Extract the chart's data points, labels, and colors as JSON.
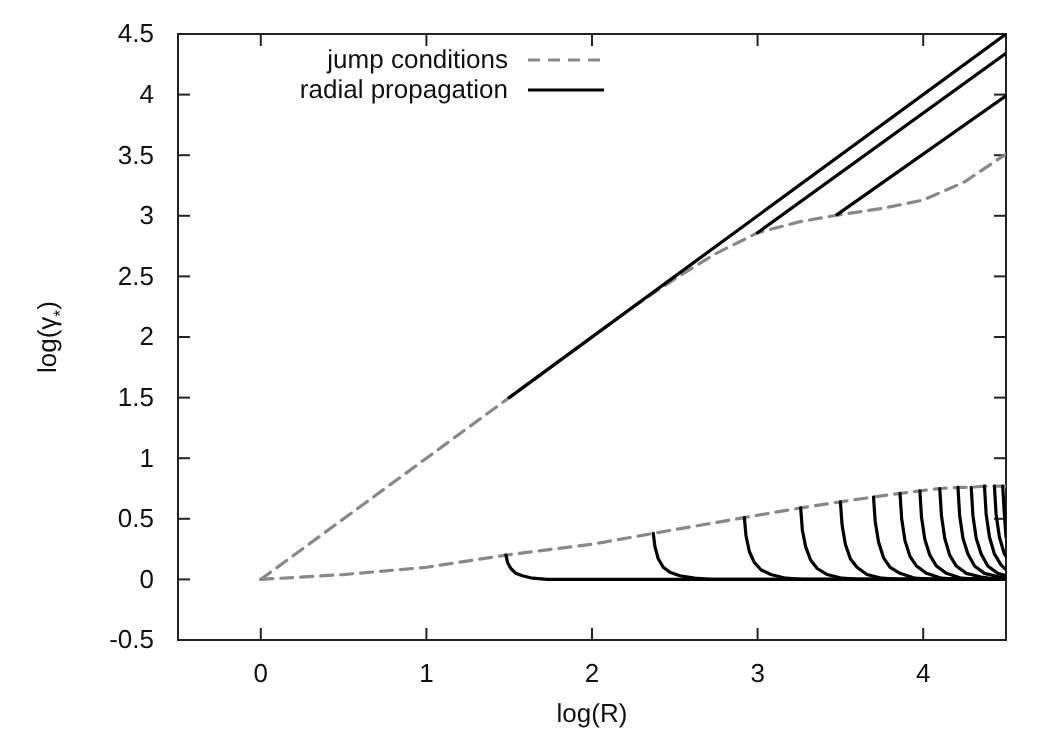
{
  "chart_data": {
    "type": "line",
    "xlabel": "log(R)",
    "ylabel": "log(γ$_{*}$)",
    "xlim": [
      -0.5,
      4.5
    ],
    "xticks": [
      0,
      1,
      2,
      3,
      4
    ],
    "ylim": [
      -0.5,
      4.5
    ],
    "yticks": [
      -0.5,
      0,
      0.5,
      1,
      1.5,
      2,
      2.5,
      3,
      3.5,
      4,
      4.5
    ],
    "grid": false,
    "legend": "top left",
    "marker": "none",
    "series": [
      {
        "name": "jump conditions",
        "color": "#888888",
        "line_style": "dashed",
        "x": [
          0,
          0.5,
          1,
          1.5,
          2,
          2.25,
          2.5,
          2.75,
          3,
          3.25,
          3.5,
          3.75,
          4,
          4.25,
          4.5
        ],
        "values": [
          0,
          0.5,
          1,
          1.5,
          2,
          2.25,
          2.48,
          2.69,
          2.86,
          2.95,
          3.01,
          3.06,
          3.13,
          3.28,
          3.51
        ]
      },
      {
        "name": "radial propagation",
        "color": "#000000",
        "line_style": "solid",
        "x": [
          1.5,
          4.5
        ],
        "values": [
          1.5,
          4.5
        ]
      },
      {
        "color": "#000000",
        "line_style": "solid",
        "x": [
          3,
          4.5
        ],
        "values": [
          2.86,
          4.34
        ]
      },
      {
        "color": "#000000",
        "line_style": "solid",
        "x": [
          3.48,
          4.5
        ],
        "values": [
          3.01,
          3.99
        ]
      },
      {
        "color": "#888888",
        "line_style": "dashed",
        "x": [
          0,
          0.5,
          1,
          1.48,
          2,
          2.37,
          2.92,
          3.26,
          3.5,
          3.7,
          3.86,
          3.98,
          4.1,
          4.21,
          4.29,
          4.37,
          4.43,
          4.48,
          4.5
        ],
        "values": [
          0,
          0.04,
          0.1,
          0.2,
          0.29,
          0.38,
          0.51,
          0.59,
          0.64,
          0.68,
          0.71,
          0.73,
          0.75,
          0.76,
          0.76,
          0.77,
          0.77,
          0.77,
          0.77
        ]
      },
      {
        "color": "#000000",
        "line_style": "solid",
        "x": [
          1.48,
          1.49,
          1.51,
          1.54,
          1.58,
          1.64,
          1.73,
          1.83,
          4.5
        ],
        "values": [
          0.2,
          0.14,
          0.09,
          0.05,
          0.03,
          0.01,
          0,
          0,
          0
        ]
      },
      {
        "color": "#000000",
        "line_style": "solid",
        "x": [
          2.37,
          2.38,
          2.4,
          2.43,
          2.47,
          2.53,
          2.62,
          2.72,
          4.5
        ],
        "values": [
          0.38,
          0.27,
          0.17,
          0.1,
          0.06,
          0.03,
          0.01,
          0,
          0
        ]
      },
      {
        "color": "#000000",
        "line_style": "solid",
        "x": [
          2.92,
          2.93,
          2.95,
          2.98,
          3.02,
          3.08,
          3.17,
          3.27,
          4.5
        ],
        "values": [
          0.51,
          0.36,
          0.23,
          0.14,
          0.08,
          0.04,
          0.01,
          0,
          0
        ]
      },
      {
        "color": "#000000",
        "line_style": "solid",
        "x": [
          3.26,
          3.27,
          3.29,
          3.32,
          3.36,
          3.42,
          3.51,
          3.61,
          4.5
        ],
        "values": [
          0.59,
          0.41,
          0.27,
          0.16,
          0.09,
          0.04,
          0.01,
          0,
          0
        ]
      },
      {
        "color": "#000000",
        "line_style": "solid",
        "x": [
          3.5,
          3.51,
          3.53,
          3.56,
          3.6,
          3.66,
          3.75,
          3.85,
          4.5
        ],
        "values": [
          0.64,
          0.45,
          0.29,
          0.17,
          0.1,
          0.04,
          0.01,
          0,
          0
        ]
      },
      {
        "color": "#000000",
        "line_style": "solid",
        "x": [
          3.7,
          3.71,
          3.73,
          3.76,
          3.8,
          3.86,
          3.95,
          4.05,
          4.5
        ],
        "values": [
          0.68,
          0.48,
          0.31,
          0.18,
          0.1,
          0.05,
          0.01,
          0,
          0
        ]
      },
      {
        "color": "#000000",
        "line_style": "solid",
        "x": [
          3.86,
          3.87,
          3.89,
          3.92,
          3.96,
          4.02,
          4.11,
          4.21,
          4.5
        ],
        "values": [
          0.71,
          0.5,
          0.32,
          0.19,
          0.11,
          0.05,
          0.01,
          0,
          0
        ]
      },
      {
        "color": "#000000",
        "line_style": "solid",
        "x": [
          3.98,
          3.99,
          4.01,
          4.04,
          4.08,
          4.14,
          4.23,
          4.33,
          4.5
        ],
        "values": [
          0.73,
          0.51,
          0.33,
          0.2,
          0.11,
          0.05,
          0.01,
          0,
          0
        ]
      },
      {
        "color": "#000000",
        "line_style": "solid",
        "x": [
          4.1,
          4.11,
          4.13,
          4.16,
          4.2,
          4.26,
          4.35,
          4.45,
          4.5
        ],
        "values": [
          0.75,
          0.53,
          0.34,
          0.2,
          0.11,
          0.05,
          0.02,
          0,
          0
        ]
      },
      {
        "color": "#000000",
        "line_style": "solid",
        "x": [
          4.21,
          4.22,
          4.24,
          4.27,
          4.31,
          4.37,
          4.46,
          4.5
        ],
        "values": [
          0.76,
          0.53,
          0.34,
          0.21,
          0.11,
          0.05,
          0.02,
          0.01
        ]
      },
      {
        "color": "#000000",
        "line_style": "solid",
        "x": [
          4.29,
          4.3,
          4.32,
          4.35,
          4.39,
          4.45,
          4.5
        ],
        "values": [
          0.76,
          0.53,
          0.34,
          0.21,
          0.11,
          0.05,
          0.03
        ]
      },
      {
        "color": "#000000",
        "line_style": "solid",
        "x": [
          4.37,
          4.38,
          4.4,
          4.43,
          4.47,
          4.5
        ],
        "values": [
          0.77,
          0.54,
          0.35,
          0.21,
          0.12,
          0.08
        ]
      },
      {
        "color": "#000000",
        "line_style": "solid",
        "x": [
          4.43,
          4.44,
          4.46,
          4.49,
          4.5
        ],
        "values": [
          0.77,
          0.54,
          0.35,
          0.21,
          0.19
        ]
      },
      {
        "color": "#000000",
        "line_style": "solid",
        "x": [
          4.48,
          4.49,
          4.5
        ],
        "values": [
          0.77,
          0.54,
          0.35
        ]
      }
    ]
  }
}
